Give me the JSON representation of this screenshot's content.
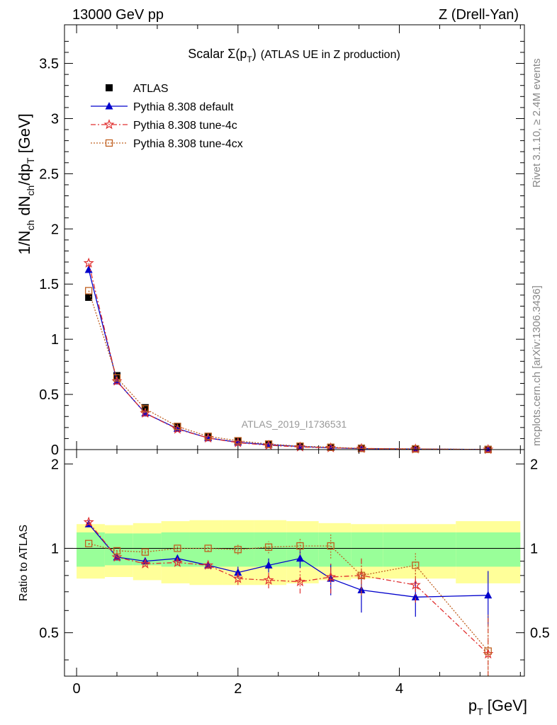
{
  "header": {
    "left": "13000 GeV pp",
    "right": "Z (Drell-Yan)"
  },
  "side_labels": {
    "top": "Rivet 3.1.10, ≥ 2.4M events",
    "bottom": "mcplots.cern.ch [arXiv:1306.3436]"
  },
  "watermark": "ATLAS_2019_I1736531",
  "chart_data": [
    {
      "type": "scatter",
      "title_main": "Scalar Σ(p",
      "title_sub": "T",
      "title_close": ")",
      "title_tail": "(ATLAS UE in Z production)",
      "ylabel": "1/N_ch dN_ch/dp_T [GeV]",
      "xlim": [
        -0.15,
        5.55
      ],
      "ylim": [
        0,
        3.85
      ],
      "yticks": [
        0,
        0.5,
        1,
        1.5,
        2,
        2.5,
        3,
        3.5
      ],
      "ytick_labels": [
        "0",
        "0.5",
        "1",
        "1.5",
        "2",
        "2.5",
        "3",
        "3.5"
      ],
      "legend_position": "top-left",
      "x": [
        0.15,
        0.5,
        0.85,
        1.25,
        1.63,
        2.0,
        2.38,
        2.77,
        3.15,
        3.53,
        4.2,
        5.1
      ],
      "series": [
        {
          "name": "ATLAS",
          "color": "#000000",
          "marker": "square",
          "line": "none",
          "values": [
            1.38,
            0.67,
            0.38,
            0.21,
            0.12,
            0.08,
            0.05,
            0.03,
            0.02,
            0.013,
            0.007,
            0.002
          ]
        },
        {
          "name": "Pythia 8.308 default",
          "color": "#0000cc",
          "marker": "triangle",
          "line": "solid",
          "values": [
            1.63,
            0.62,
            0.33,
            0.19,
            0.105,
            0.066,
            0.044,
            0.028,
            0.016,
            0.009,
            0.0047,
            0.0014
          ]
        },
        {
          "name": "Pythia 8.308 tune-4c",
          "color": "#e03030",
          "marker": "star",
          "line": "dashdot",
          "values": [
            1.69,
            0.62,
            0.33,
            0.185,
            0.105,
            0.062,
            0.039,
            0.023,
            0.016,
            0.01,
            0.0052,
            0.0009
          ]
        },
        {
          "name": "Pythia 8.308 tune-4cx",
          "color": "#c06020",
          "marker": "open-square",
          "line": "dotted",
          "values": [
            1.44,
            0.65,
            0.37,
            0.21,
            0.12,
            0.08,
            0.05,
            0.031,
            0.021,
            0.0105,
            0.0061,
            0.0009
          ]
        }
      ]
    },
    {
      "type": "scatter",
      "ylabel": "Ratio to ATLAS",
      "xlabel_main": "p",
      "xlabel_sub": "T",
      "xlabel_unit": " [GeV]",
      "xlim": [
        -0.15,
        5.55
      ],
      "ylim": [
        0.35,
        2.25
      ],
      "xticks": [
        0,
        2,
        4
      ],
      "xtick_labels": [
        "0",
        "2",
        "4"
      ],
      "yticks": [
        0.5,
        1,
        2
      ],
      "ytick_labels": [
        "0.5",
        "1",
        "2"
      ],
      "bin_edges": [
        0,
        0.35,
        0.7,
        1.05,
        1.4,
        1.8,
        2.2,
        2.6,
        3.0,
        3.4,
        3.8,
        4.7,
        5.5
      ],
      "band_stat_sys": [
        0.14,
        0.13,
        0.13,
        0.14,
        0.14,
        0.14,
        0.14,
        0.14,
        0.14,
        0.14,
        0.14,
        0.14
      ],
      "band_total": [
        0.22,
        0.21,
        0.23,
        0.25,
        0.26,
        0.26,
        0.26,
        0.25,
        0.23,
        0.22,
        0.22,
        0.25
      ],
      "series": [
        {
          "name": "Pythia 8.308 default",
          "color": "#0000cc",
          "marker": "triangle",
          "line": "solid",
          "values": [
            1.22,
            0.93,
            0.9,
            0.92,
            0.87,
            0.82,
            0.87,
            0.92,
            0.78,
            0.71,
            0.67,
            0.68
          ],
          "errors": [
            0.01,
            0.01,
            0.015,
            0.02,
            0.025,
            0.04,
            0.05,
            0.07,
            0.1,
            0.12,
            0.1,
            0.15
          ]
        },
        {
          "name": "Pythia 8.308 tune-4c",
          "color": "#e03030",
          "marker": "star",
          "line": "dashdot",
          "values": [
            1.24,
            0.93,
            0.88,
            0.89,
            0.87,
            0.78,
            0.77,
            0.76,
            0.79,
            0.8,
            0.74,
            0.42
          ],
          "errors": [
            0.01,
            0.01,
            0.015,
            0.02,
            0.025,
            0.04,
            0.05,
            0.07,
            0.1,
            0.12,
            0.1,
            0.15
          ]
        },
        {
          "name": "Pythia 8.308 tune-4cx",
          "color": "#c06020",
          "marker": "open-square",
          "line": "dotted",
          "values": [
            1.04,
            0.98,
            0.97,
            1.0,
            1.0,
            0.99,
            1.01,
            1.02,
            1.02,
            0.8,
            0.87,
            0.43
          ],
          "errors": [
            0.01,
            0.01,
            0.015,
            0.02,
            0.025,
            0.04,
            0.05,
            0.07,
            0.1,
            0.12,
            0.1,
            0.15
          ]
        }
      ]
    }
  ]
}
